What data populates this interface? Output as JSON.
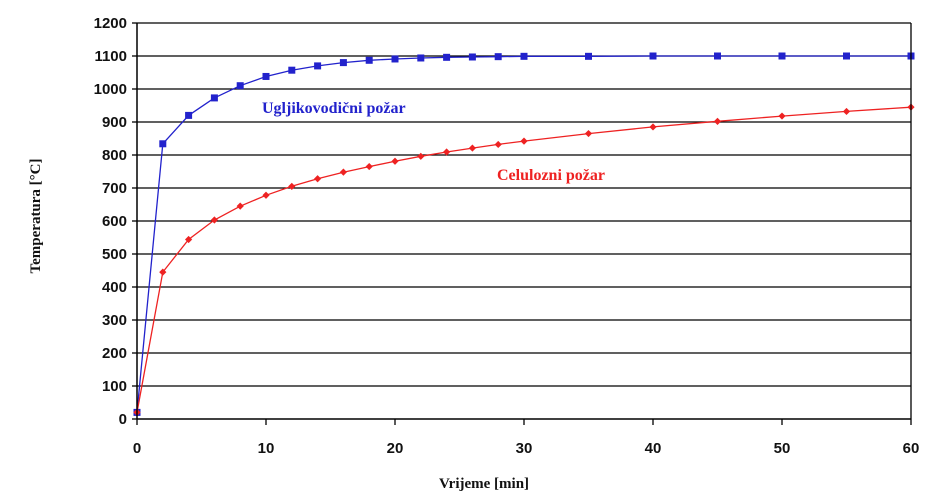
{
  "chart_data": {
    "type": "line",
    "title": "",
    "xlabel": "Vrijeme [min]",
    "ylabel": "Temperatura [°C]",
    "xlim": [
      0,
      60
    ],
    "ylim": [
      0,
      1200
    ],
    "x_ticks": [
      "0",
      "10",
      "20",
      "30",
      "40",
      "50",
      "60"
    ],
    "y_ticks": [
      "0",
      "100",
      "200",
      "300",
      "400",
      "500",
      "600",
      "700",
      "800",
      "900",
      "1000",
      "1100",
      "1200"
    ],
    "grid": "horizontal",
    "series": [
      {
        "name": "Ugljikovodični požar",
        "color": "#2222cc",
        "marker": "square",
        "x": [
          0,
          2,
          4,
          6,
          8,
          10,
          12,
          14,
          16,
          18,
          20,
          22,
          24,
          26,
          28,
          30,
          35,
          40,
          45,
          50,
          55,
          60
        ],
        "y": [
          20,
          834,
          920,
          973,
          1010,
          1038,
          1057,
          1070,
          1080,
          1087,
          1091,
          1094,
          1096,
          1097,
          1098,
          1099,
          1099,
          1100,
          1100,
          1100,
          1100,
          1100
        ]
      },
      {
        "name": "Celulozni požar",
        "color": "#ee2222",
        "marker": "diamond",
        "x": [
          0,
          2,
          4,
          6,
          8,
          10,
          12,
          14,
          16,
          18,
          20,
          22,
          24,
          26,
          28,
          30,
          35,
          40,
          45,
          50,
          55,
          60
        ],
        "y": [
          20,
          445,
          544,
          603,
          645,
          678,
          705,
          728,
          748,
          765,
          781,
          796,
          809,
          821,
          832,
          842,
          865,
          885,
          902,
          918,
          932,
          945
        ]
      }
    ],
    "annotations": [
      {
        "text": "Ugljikovodični požar",
        "series": 0
      },
      {
        "text": "Celulozni požar",
        "series": 1
      }
    ]
  }
}
